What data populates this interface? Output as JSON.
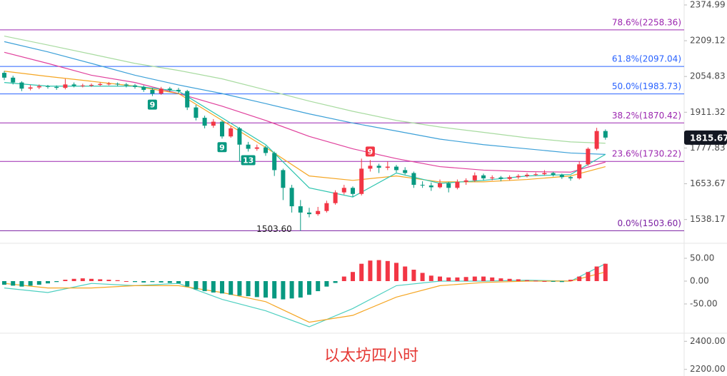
{
  "chart_data": [
    {
      "type": "candlestick",
      "log": true,
      "ylim": [
        1468,
        2399
      ],
      "yticks": [
        2374.99,
        2209.12,
        2054.83,
        1911.32,
        1777.83,
        1653.67,
        1538.17
      ],
      "up_color": "#f23645",
      "down_color": "#089981",
      "candles": [
        [
          2070,
          2078,
          2040,
          2050
        ],
        [
          2050,
          2058,
          2022,
          2030
        ],
        [
          2030,
          2035,
          1995,
          2005
        ],
        [
          2005,
          2020,
          1998,
          2010
        ],
        [
          2010,
          2022,
          2003,
          2015
        ],
        [
          2015,
          2020,
          2005,
          2012
        ],
        [
          2012,
          2018,
          2000,
          2008
        ],
        [
          2008,
          2045,
          2002,
          2022
        ],
        [
          2022,
          2030,
          2010,
          2016
        ],
        [
          2016,
          2025,
          2010,
          2018
        ],
        [
          2018,
          2026,
          2012,
          2020
        ],
        [
          2020,
          2030,
          2015,
          2024
        ],
        [
          2024,
          2032,
          2018,
          2025
        ],
        [
          2025,
          2030,
          2015,
          2022
        ],
        [
          2022,
          2028,
          2010,
          2018
        ],
        [
          2018,
          2024,
          2005,
          2012
        ],
        [
          2012,
          2018,
          1992,
          2000
        ],
        [
          2000,
          2008,
          1975,
          1985
        ],
        [
          1985,
          2012,
          1980,
          2005
        ],
        [
          2005,
          2012,
          1992,
          2000
        ],
        [
          2000,
          2008,
          1985,
          1995
        ],
        [
          1995,
          2000,
          1920,
          1930
        ],
        [
          1930,
          1940,
          1880,
          1890
        ],
        [
          1890,
          1898,
          1850,
          1860
        ],
        [
          1860,
          1885,
          1852,
          1875
        ],
        [
          1875,
          1880,
          1812,
          1820
        ],
        [
          1820,
          1858,
          1815,
          1850
        ],
        [
          1850,
          1855,
          1730,
          1790
        ],
        [
          1790,
          1800,
          1765,
          1775
        ],
        [
          1775,
          1790,
          1768,
          1780
        ],
        [
          1780,
          1786,
          1750,
          1760
        ],
        [
          1760,
          1765,
          1680,
          1700
        ],
        [
          1700,
          1705,
          1600,
          1640
        ],
        [
          1640,
          1650,
          1560,
          1580
        ],
        [
          1580,
          1600,
          1503.6,
          1560
        ],
        [
          1560,
          1575,
          1545,
          1555
        ],
        [
          1555,
          1578,
          1550,
          1565
        ],
        [
          1565,
          1598,
          1560,
          1590
        ],
        [
          1590,
          1632,
          1585,
          1625
        ],
        [
          1625,
          1650,
          1618,
          1640
        ],
        [
          1640,
          1645,
          1610,
          1620
        ],
        [
          1620,
          1740,
          1615,
          1705
        ],
        [
          1705,
          1735,
          1695,
          1715
        ],
        [
          1715,
          1722,
          1690,
          1708
        ],
        [
          1708,
          1730,
          1700,
          1712
        ],
        [
          1712,
          1718,
          1692,
          1700
        ],
        [
          1700,
          1710,
          1685,
          1690
        ],
        [
          1690,
          1695,
          1640,
          1650
        ],
        [
          1650,
          1662,
          1640,
          1648
        ],
        [
          1648,
          1658,
          1630,
          1642
        ],
        [
          1642,
          1668,
          1638,
          1655
        ],
        [
          1655,
          1660,
          1625,
          1640
        ],
        [
          1640,
          1668,
          1635,
          1660
        ],
        [
          1660,
          1672,
          1650,
          1665
        ],
        [
          1665,
          1692,
          1660,
          1682
        ],
        [
          1682,
          1688,
          1665,
          1672
        ],
        [
          1672,
          1682,
          1665,
          1675
        ],
        [
          1675,
          1680,
          1662,
          1670
        ],
        [
          1670,
          1682,
          1665,
          1676
        ],
        [
          1676,
          1686,
          1670,
          1680
        ],
        [
          1680,
          1690,
          1675,
          1684
        ],
        [
          1684,
          1692,
          1680,
          1686
        ],
        [
          1686,
          1700,
          1682,
          1690
        ],
        [
          1690,
          1694,
          1678,
          1684
        ],
        [
          1684,
          1688,
          1670,
          1676
        ],
        [
          1676,
          1680,
          1664,
          1672
        ],
        [
          1672,
          1730,
          1668,
          1720
        ],
        [
          1720,
          1780,
          1715,
          1775
        ],
        [
          1775,
          1852,
          1770,
          1840
        ],
        [
          1840,
          1846,
          1808,
          1815.67
        ]
      ],
      "overlays": [
        {
          "color": "#a8dba0",
          "x": [
            0,
            5,
            10,
            15,
            20,
            25,
            30,
            35,
            40,
            45,
            50,
            55,
            60,
            65,
            69
          ],
          "values": [
            2230,
            2190,
            2150,
            2110,
            2080,
            2045,
            2000,
            1955,
            1915,
            1880,
            1855,
            1835,
            1815,
            1800,
            1795
          ]
        },
        {
          "color": "#3ca0d8",
          "x": [
            0,
            5,
            10,
            15,
            20,
            25,
            30,
            35,
            40,
            45,
            50,
            55,
            60,
            65,
            69
          ],
          "values": [
            2205,
            2160,
            2110,
            2060,
            2020,
            1985,
            1945,
            1905,
            1870,
            1840,
            1810,
            1790,
            1775,
            1760,
            1755
          ]
        },
        {
          "color": "#e0409c",
          "x": [
            0,
            5,
            10,
            15,
            20,
            25,
            30,
            35,
            40,
            45,
            50,
            55,
            60,
            65,
            69
          ],
          "values": [
            2158,
            2110,
            2060,
            2030,
            1985,
            1935,
            1880,
            1820,
            1775,
            1740,
            1712,
            1700,
            1695,
            1693,
            1728
          ]
        },
        {
          "color": "#f5a623",
          "x": [
            0,
            5,
            10,
            15,
            20,
            25,
            30,
            35,
            40,
            45,
            50,
            55,
            60,
            65,
            69
          ],
          "values": [
            2077,
            2055,
            2035,
            2015,
            1985,
            1880,
            1780,
            1680,
            1665,
            1680,
            1660,
            1660,
            1668,
            1680,
            1712
          ]
        },
        {
          "color": "#2cc4ae",
          "x": [
            0,
            5,
            10,
            15,
            20,
            25,
            30,
            35,
            40,
            45,
            50,
            55,
            60,
            65,
            69
          ],
          "values": [
            2030,
            2015,
            2015,
            2015,
            1995,
            1890,
            1790,
            1640,
            1610,
            1690,
            1655,
            1665,
            1680,
            1685,
            1755
          ]
        }
      ],
      "levels": [
        {
          "label": "78.6%(2258.36)",
          "value": 2258.36,
          "color": "#9c27b0"
        },
        {
          "label": "61.8%(2097.04)",
          "value": 2097.04,
          "color": "#2962ff"
        },
        {
          "label": "50.0%(1983.73)",
          "value": 1983.73,
          "color": "#2962ff"
        },
        {
          "label": "38.2%(1870.42)",
          "value": 1870.42,
          "color": "#9c27b0"
        },
        {
          "label": "23.6%(1730.22)",
          "value": 1730.22,
          "color": "#9c27b0"
        },
        {
          "label": "0.0%(1503.60)",
          "value": 1503.6,
          "color": "#7b1fa2"
        }
      ],
      "markers": [
        {
          "text": "9",
          "x": 17,
          "position": "below",
          "color": "#089981"
        },
        {
          "text": "9",
          "x": 25,
          "position": "below",
          "color": "#089981"
        },
        {
          "text": "13",
          "x": 28,
          "position": "below",
          "color": "#089981"
        },
        {
          "text": "9",
          "x": 42,
          "position": "above",
          "color": "#f23645"
        }
      ],
      "annotations": [
        {
          "text": "1503.60",
          "x": 34
        }
      ]
    },
    {
      "type": "macd",
      "ylim": [
        -112.5,
        81.25
      ],
      "yticks": [
        {
          "value": 50,
          "label": "50.00"
        },
        {
          "value": 0,
          "label": "0.00"
        },
        {
          "value": -50,
          "label": "-50.00"
        }
      ],
      "up_color": "#f23645",
      "down_color": "#089981",
      "values": [
        -8,
        -10,
        -12,
        -10,
        -8,
        -5,
        -2,
        3,
        5,
        6,
        5,
        4,
        3,
        2,
        0,
        -2,
        -3,
        -2,
        -3,
        -4,
        -5,
        -12,
        -18,
        -22,
        -25,
        -27,
        -30,
        -32,
        -33,
        -35,
        -36,
        -38,
        -40,
        -38,
        -36,
        -30,
        -22,
        -12,
        -4,
        10,
        20,
        38,
        45,
        46,
        44,
        40,
        32,
        25,
        18,
        12,
        10,
        8,
        8,
        9,
        10,
        10,
        8,
        6,
        5,
        4,
        2,
        1,
        0,
        -1,
        -2,
        3,
        10,
        20,
        32,
        38
      ],
      "overlays": [
        {
          "color": "#4dcfc0",
          "x": [
            0,
            5,
            10,
            15,
            20,
            25,
            30,
            35,
            40,
            45,
            50,
            55,
            60,
            65,
            69
          ],
          "values": [
            -15,
            -25,
            -5,
            -10,
            -5,
            -40,
            -65,
            -100,
            -60,
            -10,
            0,
            0,
            2,
            0,
            38
          ]
        },
        {
          "color": "#f5a623",
          "x": [
            0,
            5,
            10,
            15,
            20,
            25,
            30,
            35,
            40,
            45,
            50,
            55,
            60,
            65,
            69
          ],
          "values": [
            -5,
            -15,
            -15,
            -10,
            -10,
            -25,
            -45,
            -90,
            -75,
            -35,
            -10,
            -3,
            0,
            0,
            20
          ]
        }
      ]
    },
    {
      "type": "panel",
      "title": "以太坊四小时",
      "ylim": [
        2152.6,
        2452.6
      ],
      "yticks": [
        {
          "value": 2400,
          "label": "2400.00"
        },
        {
          "value": 2200,
          "label": "2200.00"
        }
      ]
    }
  ]
}
